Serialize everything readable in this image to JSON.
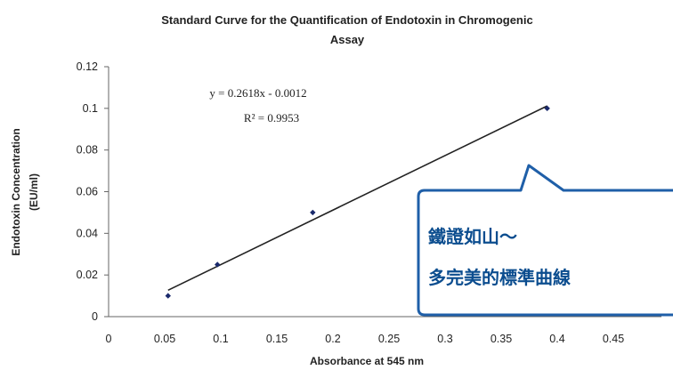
{
  "chart_data": {
    "type": "scatter",
    "title_lines": [
      "Standard Curve for the Quantification of Endotoxin in Chromogenic",
      "Assay"
    ],
    "xlabel": "Absorbance at 545 nm",
    "ylabel_lines": [
      "Endotoxin Concentration",
      "(EU/ml)"
    ],
    "xlim": [
      0,
      0.45
    ],
    "ylim": [
      0,
      0.12
    ],
    "x_ticks": [
      "0",
      "0.05",
      "0.1",
      "0.15",
      "0.2",
      "0.25",
      "0.3",
      "0.35",
      "0.4",
      "0.45"
    ],
    "y_ticks": [
      "0",
      "0.02",
      "0.04",
      "0.06",
      "0.08",
      "0.1",
      "0.12"
    ],
    "grid": false,
    "points": [
      {
        "x": 0.053,
        "y": 0.01
      },
      {
        "x": 0.097,
        "y": 0.025
      },
      {
        "x": 0.182,
        "y": 0.05
      },
      {
        "x": 0.391,
        "y": 0.1
      }
    ],
    "trendline": {
      "slope": 0.2618,
      "intercept": -0.0012,
      "x_range": [
        0.053,
        0.391
      ]
    },
    "equation": "y = 0.2618x - 0.0012",
    "r_squared": "R² = 0.9953"
  },
  "callout": {
    "line1": "鐵證如山～",
    "line2": "多完美的標準曲線",
    "border_color": "#1f5fa8",
    "text_color": "#0b4d8f"
  }
}
